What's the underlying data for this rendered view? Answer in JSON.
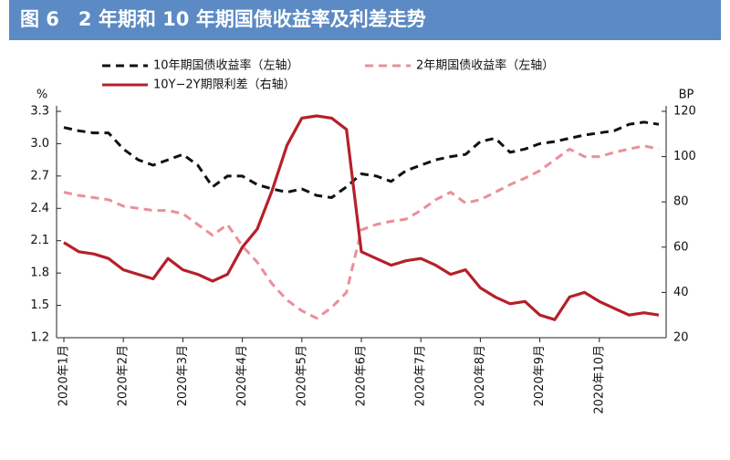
{
  "chart_data": {
    "type": "line",
    "title": "图 6　2 年期和 10 年期国债收益率及利差走势",
    "y_label": "%",
    "y2_label": "BP",
    "categories": [
      "2020年1月",
      null,
      null,
      null,
      "2020年2月",
      null,
      null,
      null,
      "2020年3月",
      null,
      null,
      null,
      "2020年4月",
      null,
      null,
      null,
      "2020年5月",
      null,
      null,
      null,
      "2020年6月",
      null,
      null,
      null,
      "2020年7月",
      null,
      null,
      null,
      "2020年8月",
      null,
      null,
      null,
      "2020年9月",
      null,
      null,
      null,
      "2020年10月",
      null,
      null,
      null,
      null
    ],
    "series": [
      {
        "name": "10年期国债收益率（左轴）",
        "color": "#111111",
        "dash": true,
        "values": [
          3.15,
          3.12,
          3.1,
          3.1,
          2.95,
          2.85,
          2.8,
          2.85,
          2.9,
          2.8,
          2.6,
          2.7,
          2.7,
          2.62,
          2.58,
          2.55,
          2.58,
          2.52,
          2.5,
          2.6,
          2.72,
          2.7,
          2.65,
          2.75,
          2.8,
          2.85,
          2.88,
          2.9,
          3.02,
          3.05,
          2.92,
          2.95,
          3.0,
          3.02,
          3.05,
          3.08,
          3.1,
          3.12,
          3.18,
          3.2,
          3.18
        ]
      },
      {
        "name": "2年期国债收益率（左轴）",
        "color": "#e8909a",
        "dash": true,
        "values": [
          2.55,
          2.52,
          2.5,
          2.48,
          2.42,
          2.4,
          2.38,
          2.38,
          2.35,
          2.25,
          2.15,
          2.25,
          2.05,
          1.9,
          1.7,
          1.55,
          1.45,
          1.38,
          1.48,
          1.62,
          2.2,
          2.25,
          2.28,
          2.3,
          2.38,
          2.48,
          2.55,
          2.45,
          2.48,
          2.55,
          2.62,
          2.68,
          2.75,
          2.85,
          2.95,
          2.88,
          2.88,
          2.92,
          2.95,
          2.98,
          2.95
        ]
      },
      {
        "name": "10Y−2Y期限利差（右轴）",
        "color": "#b5202a",
        "dash": false,
        "axis": "y2",
        "values": [
          62,
          58,
          57,
          55,
          50,
          48,
          46,
          55,
          50,
          48,
          45,
          48,
          60,
          68,
          85,
          105,
          117,
          118,
          117,
          112,
          58,
          55,
          52,
          54,
          55,
          52,
          48,
          50,
          42,
          38,
          35,
          36,
          30,
          28,
          38,
          40,
          36,
          33,
          30,
          31,
          30
        ]
      }
    ],
    "ylim": [
      1.2,
      3.3
    ],
    "yticks": [
      1.2,
      1.5,
      1.8,
      2.1,
      2.4,
      2.7,
      {
        "value": 3,
        "label": "3.0"
      },
      3.3
    ],
    "y2lim": [
      20,
      120
    ],
    "y2ticks": [
      20,
      40,
      60,
      80,
      100,
      120
    ]
  }
}
